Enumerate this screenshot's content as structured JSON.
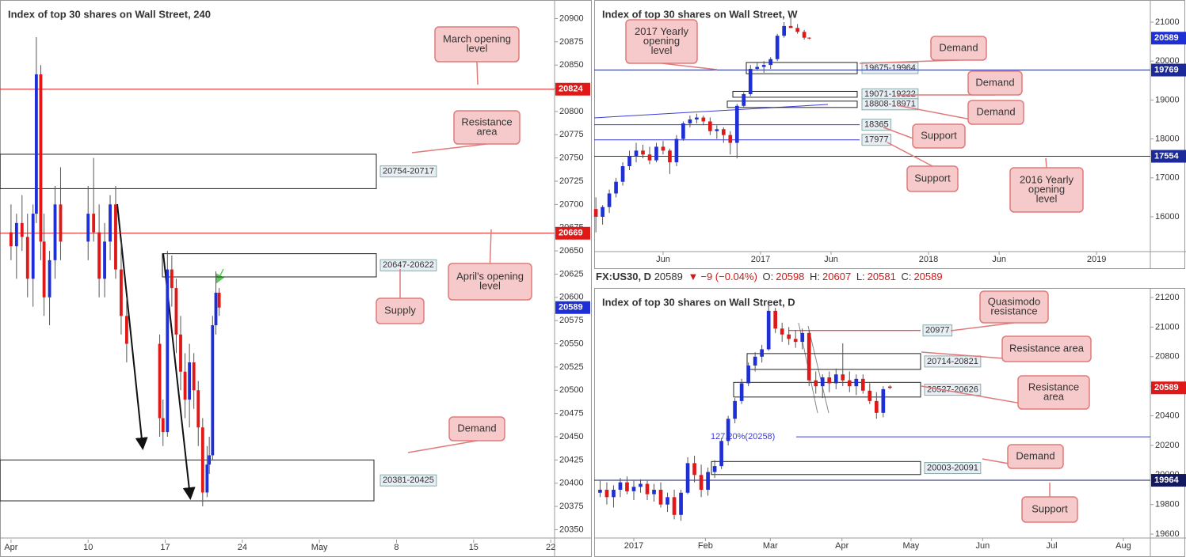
{
  "chart_data": [
    {
      "type": "candlestick",
      "title": "Index of top 30 shares on Wall Street, 240",
      "x": [
        3.0,
        3.5,
        4.0,
        4.5,
        5.0,
        5.3,
        5.7,
        6.0,
        6.5,
        7.0,
        7.5,
        10.0,
        10.5,
        11.0,
        11.5,
        12.0,
        12.5,
        13.0,
        13.5,
        16.5,
        16.8,
        17.2,
        17.6,
        18.0,
        18.4,
        18.8,
        19.2,
        19.6,
        20.0,
        20.4,
        20.8,
        21.0,
        21.3,
        21.6,
        21.9
      ],
      "candles": [
        [
          20670,
          20700,
          20640,
          20655
        ],
        [
          20655,
          20690,
          20620,
          20680
        ],
        [
          20680,
          20710,
          20650,
          20665
        ],
        [
          20665,
          20690,
          20600,
          20620
        ],
        [
          20620,
          20700,
          20590,
          20690
        ],
        [
          20690,
          20880,
          20680,
          20840
        ],
        [
          20840,
          20850,
          20640,
          20660
        ],
        [
          20660,
          20690,
          20580,
          20600
        ],
        [
          20600,
          20650,
          20570,
          20640
        ],
        [
          20640,
          20720,
          20620,
          20700
        ],
        [
          20700,
          20740,
          20640,
          20660
        ],
        [
          20660,
          20720,
          20640,
          20690
        ],
        [
          20690,
          20750,
          20660,
          20670
        ],
        [
          20670,
          20700,
          20600,
          20620
        ],
        [
          20620,
          20680,
          20600,
          20660
        ],
        [
          20660,
          20710,
          20640,
          20700
        ],
        [
          20700,
          20720,
          20620,
          20630
        ],
        [
          20630,
          20660,
          20560,
          20580
        ],
        [
          20580,
          20600,
          20530,
          20550
        ],
        [
          20550,
          20560,
          20450,
          20470
        ],
        [
          20470,
          20490,
          20440,
          20455
        ],
        [
          20455,
          20650,
          20450,
          20630
        ],
        [
          20630,
          20645,
          20590,
          20610
        ],
        [
          20610,
          20620,
          20540,
          20560
        ],
        [
          20560,
          20580,
          20500,
          20520
        ],
        [
          20520,
          20540,
          20470,
          20490
        ],
        [
          20490,
          20550,
          20460,
          20530
        ],
        [
          20530,
          20540,
          20480,
          20500
        ],
        [
          20500,
          20510,
          20440,
          20460
        ],
        [
          20460,
          20470,
          20375,
          20390
        ],
        [
          20390,
          20440,
          20385,
          20420
        ],
        [
          20420,
          20450,
          20410,
          20430
        ],
        [
          20430,
          20580,
          20425,
          20570
        ],
        [
          20570,
          20628,
          20560,
          20605
        ],
        [
          20605,
          20610,
          20580,
          20589
        ]
      ],
      "up_color": "#1f2fd6",
      "down_color": "#e01818",
      "xlim": [
        2,
        52.35
      ],
      "xticks": [
        {
          "value": 3,
          "label": "Apr"
        },
        10,
        17,
        24,
        {
          "value": 31,
          "label": "May"
        },
        {
          "value": 38,
          "label": "8"
        },
        {
          "value": 45,
          "label": "15"
        },
        {
          "value": 52,
          "label": "22"
        }
      ],
      "ylim": [
        20341,
        20920
      ],
      "yticks": [
        20350,
        20375,
        20400,
        20425,
        20450,
        20475,
        20500,
        20525,
        20550,
        20575,
        20600,
        20625,
        20650,
        20675,
        20700,
        20725,
        20750,
        20775,
        20800,
        20825,
        20850,
        20875,
        20900
      ],
      "last": 20589,
      "last_color": "#1f2fd6",
      "lines": [
        {
          "value": 20824,
          "color": "#e01818"
        },
        {
          "value": 20669,
          "color": "#e01818"
        }
      ],
      "short_levels": [],
      "zones": [
        {
          "label": "20754-20717",
          "low": 20717,
          "high": 20754
        },
        {
          "label": "20647-20622",
          "low": 20622,
          "high": 20647
        },
        {
          "label": "20381-20425",
          "low": 20381,
          "high": 20425
        }
      ],
      "callouts": [
        {
          "lines": [
            "March opening",
            "level"
          ]
        },
        {
          "lines": [
            "Resistance",
            "area"
          ]
        },
        {
          "lines": [
            "Supply"
          ]
        },
        {
          "lines": [
            "April's opening",
            "level"
          ]
        },
        {
          "lines": [
            "Demand"
          ]
        }
      ]
    },
    {
      "type": "candlestick",
      "title": "Index of top 30 shares on Wall Street, W",
      "x": [
        2016.02,
        2016.06,
        2016.1,
        2016.14,
        2016.18,
        2016.22,
        2016.26,
        2016.3,
        2016.34,
        2016.38,
        2016.42,
        2016.46,
        2016.5,
        2016.54,
        2016.58,
        2016.62,
        2016.66,
        2016.7,
        2016.74,
        2016.78,
        2016.82,
        2016.86,
        2016.9,
        2016.94,
        2016.98,
        2017.02,
        2017.06,
        2017.1,
        2017.14,
        2017.18,
        2017.22,
        2017.26,
        2017.29
      ],
      "candles": [
        [
          16200,
          16500,
          15600,
          16000
        ],
        [
          16000,
          16300,
          15800,
          16250
        ],
        [
          16250,
          16700,
          16100,
          16600
        ],
        [
          16600,
          17000,
          16500,
          16900
        ],
        [
          16900,
          17400,
          16800,
          17300
        ],
        [
          17300,
          17700,
          17200,
          17550
        ],
        [
          17550,
          17900,
          17400,
          17700
        ],
        [
          17700,
          17850,
          17500,
          17600
        ],
        [
          17600,
          17800,
          17350,
          17450
        ],
        [
          17450,
          17900,
          17400,
          17800
        ],
        [
          17800,
          17950,
          17600,
          17700
        ],
        [
          17700,
          17750,
          17100,
          17400
        ],
        [
          17400,
          18100,
          17300,
          18000
        ],
        [
          18000,
          18450,
          17950,
          18400
        ],
        [
          18400,
          18600,
          18300,
          18500
        ],
        [
          18500,
          18650,
          18400,
          18550
        ],
        [
          18550,
          18600,
          18350,
          18450
        ],
        [
          18450,
          18550,
          18100,
          18200
        ],
        [
          18200,
          18350,
          18000,
          18250
        ],
        [
          18250,
          18300,
          17900,
          18100
        ],
        [
          18100,
          18200,
          17600,
          17900
        ],
        [
          17900,
          18900,
          17500,
          18850
        ],
        [
          18850,
          19200,
          18800,
          19150
        ],
        [
          19150,
          19900,
          19100,
          19800
        ],
        [
          19800,
          19950,
          19750,
          19850
        ],
        [
          19850,
          20000,
          19700,
          19900
        ],
        [
          19900,
          20100,
          19800,
          20050
        ],
        [
          20050,
          20700,
          20000,
          20650
        ],
        [
          20650,
          21000,
          20600,
          20900
        ],
        [
          20900,
          21150,
          20850,
          20850
        ],
        [
          20850,
          20950,
          20700,
          20750
        ],
        [
          20750,
          20800,
          20550,
          20600
        ],
        [
          20600,
          20610,
          20560,
          20589
        ]
      ],
      "up_color": "#1f2fd6",
      "down_color": "#e01818",
      "xlim": [
        2016.01,
        2019.32
      ],
      "xticks": [
        {
          "value": 2016.42,
          "label": "Jun"
        },
        2017,
        {
          "value": 2017.42,
          "label": "Jun"
        },
        2018,
        {
          "value": 2018.42,
          "label": "Jun"
        },
        2019
      ],
      "ylim": [
        15106,
        21467
      ],
      "yticks": [
        16000,
        17000,
        18000,
        19000,
        20000,
        21000
      ],
      "last": 20589,
      "last_color": "#1f2fd6",
      "lines": [
        {
          "value": 19769,
          "color": "#1c2a99"
        },
        {
          "value": 17554,
          "color": "#1c2a99"
        }
      ],
      "short_levels": [
        {
          "value": 18365,
          "color": "#3b3bd6"
        },
        {
          "value": 17977,
          "color": "#3b3bd6"
        }
      ],
      "zones": [
        {
          "label": "19675-19964",
          "low": 19675,
          "high": 19964
        },
        {
          "label": "19071-19222",
          "low": 19071,
          "high": 19222
        },
        {
          "label": "18808-18971",
          "low": 18808,
          "high": 18971
        }
      ],
      "callouts": [
        {
          "lines": [
            "2017 Yearly",
            "opening",
            "level"
          ]
        },
        {
          "lines": [
            "Demand"
          ]
        },
        {
          "lines": [
            "Demand"
          ]
        },
        {
          "lines": [
            "Demand"
          ]
        },
        {
          "lines": [
            "Support"
          ]
        },
        {
          "lines": [
            "Support"
          ]
        },
        {
          "lines": [
            "2016 Yearly",
            "opening",
            "level"
          ]
        }
      ]
    },
    {
      "type": "candlestick",
      "title": "Index of top 30 shares on Wall Street, D",
      "quote": {
        "symbol": "FX:US30, D",
        "last": 20589,
        "change_label": "−9 (−0.04%)",
        "ohlc_labels": [
          "O:",
          "H:",
          "L:",
          "C:"
        ],
        "ohlc": [
          20598,
          20607,
          20581,
          20589
        ]
      },
      "x": [
        2016.96,
        2016.968,
        2016.976,
        2016.984,
        2016.992,
        2017.0,
        2017.008,
        2017.016,
        2017.024,
        2017.032,
        2017.04,
        2017.048,
        2017.056,
        2017.064,
        2017.072,
        2017.08,
        2017.088,
        2017.096,
        2017.104,
        2017.112,
        2017.12,
        2017.128,
        2017.136,
        2017.144,
        2017.152,
        2017.16,
        2017.168,
        2017.176,
        2017.184,
        2017.192,
        2017.2,
        2017.208,
        2017.216,
        2017.224,
        2017.232,
        2017.24,
        2017.248,
        2017.256,
        2017.264,
        2017.272,
        2017.28,
        2017.288,
        2017.296,
        2017.304
      ],
      "candles": [
        [
          19880,
          19960,
          19850,
          19900
        ],
        [
          19900,
          19950,
          19800,
          19850
        ],
        [
          19850,
          19930,
          19780,
          19900
        ],
        [
          19900,
          19980,
          19850,
          19950
        ],
        [
          19950,
          19990,
          19870,
          19890
        ],
        [
          19890,
          19960,
          19830,
          19920
        ],
        [
          19920,
          19970,
          19880,
          19940
        ],
        [
          19940,
          19960,
          19830,
          19870
        ],
        [
          19870,
          19940,
          19820,
          19900
        ],
        [
          19900,
          19950,
          19780,
          19800
        ],
        [
          19800,
          19880,
          19750,
          19850
        ],
        [
          19850,
          19900,
          19700,
          19730
        ],
        [
          19730,
          19900,
          19690,
          19880
        ],
        [
          19880,
          20120,
          19870,
          20080
        ],
        [
          20080,
          20130,
          19950,
          20000
        ],
        [
          20000,
          20070,
          19850,
          19900
        ],
        [
          19900,
          20050,
          19860,
          20020
        ],
        [
          20020,
          20100,
          19980,
          20060
        ],
        [
          20060,
          20250,
          20040,
          20230
        ],
        [
          20230,
          20400,
          20200,
          20380
        ],
        [
          20380,
          20520,
          20350,
          20500
        ],
        [
          20500,
          20650,
          20480,
          20620
        ],
        [
          20620,
          20760,
          20600,
          20740
        ],
        [
          20740,
          20830,
          20700,
          20800
        ],
        [
          20800,
          20880,
          20760,
          20850
        ],
        [
          20850,
          21170,
          20840,
          21110
        ],
        [
          21110,
          21130,
          20960,
          20990
        ],
        [
          20990,
          21030,
          20900,
          20950
        ],
        [
          20950,
          21000,
          20880,
          20920
        ],
        [
          20920,
          20980,
          20860,
          20900
        ],
        [
          20900,
          20990,
          20850,
          20960
        ],
        [
          20960,
          20980,
          20600,
          20640
        ],
        [
          20640,
          20700,
          20550,
          20600
        ],
        [
          20600,
          20680,
          20520,
          20660
        ],
        [
          20660,
          20700,
          20560,
          20620
        ],
        [
          20620,
          20720,
          20580,
          20680
        ],
        [
          20680,
          20890,
          20600,
          20640
        ],
        [
          20640,
          20700,
          20560,
          20600
        ],
        [
          20600,
          20680,
          20540,
          20650
        ],
        [
          20650,
          20680,
          20550,
          20570
        ],
        [
          20570,
          20620,
          20480,
          20500
        ],
        [
          20500,
          20560,
          20380,
          20420
        ],
        [
          20420,
          20600,
          20390,
          20580
        ],
        [
          20598,
          20607,
          20581,
          20589
        ]
      ],
      "up_color": "#1f2fd6",
      "down_color": "#e01818",
      "xlim": [
        2016.953,
        2017.613
      ],
      "xticks": [
        2017,
        {
          "value": 2017.085,
          "label": "Feb"
        },
        {
          "value": 2017.162,
          "label": "Mar"
        },
        {
          "value": 2017.247,
          "label": "Apr"
        },
        {
          "value": 2017.329,
          "label": "May"
        },
        {
          "value": 2017.414,
          "label": "Jun"
        },
        {
          "value": 2017.496,
          "label": "Jul"
        },
        {
          "value": 2017.581,
          "label": "Aug"
        }
      ],
      "ylim": [
        19563,
        21243
      ],
      "yticks": [
        19600,
        19800,
        20000,
        20200,
        20400,
        20600,
        20800,
        21000,
        21200
      ],
      "last": 20589,
      "last_color": "#e01818",
      "lines": [
        {
          "value": 19964,
          "color": "#14185e"
        }
      ],
      "short_levels": [
        {
          "value": 20977,
          "color": "#e01818"
        }
      ],
      "fib": {
        "value": 20258,
        "label": "127.20%(20258)",
        "color": "#3b3bd6"
      },
      "zones": [
        {
          "label": "20714-20821",
          "low": 20714,
          "high": 20821
        },
        {
          "label": "20527-20626",
          "low": 20527,
          "high": 20626
        },
        {
          "label": "20003-20091",
          "low": 20003,
          "high": 20091
        }
      ],
      "callouts": [
        {
          "lines": [
            "Quasimodo",
            "resistance"
          ]
        },
        {
          "lines": [
            "Resistance area"
          ]
        },
        {
          "lines": [
            "Resistance",
            "area"
          ]
        },
        {
          "lines": [
            "Demand"
          ]
        },
        {
          "lines": [
            "Support"
          ]
        }
      ]
    }
  ]
}
